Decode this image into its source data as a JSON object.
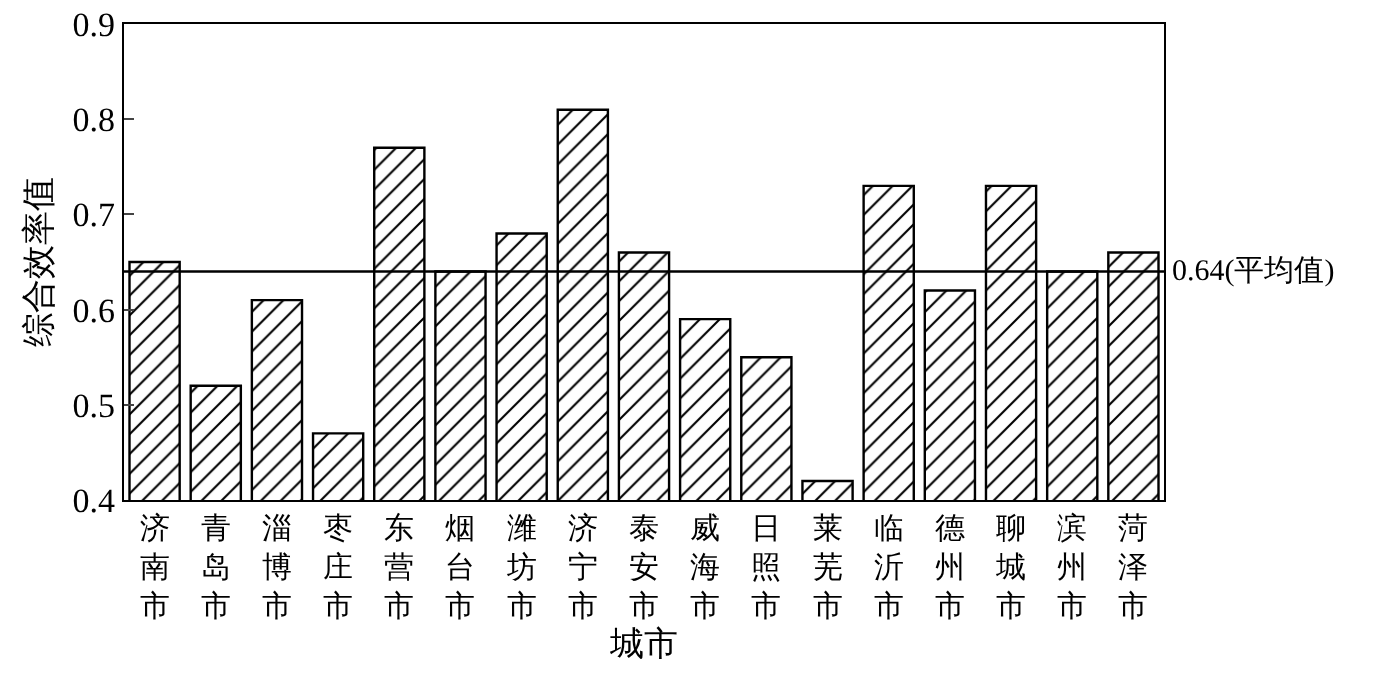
{
  "chart_data": {
    "type": "bar",
    "xlabel": "城市",
    "ylabel": "综合效率值",
    "categories": [
      "济南市",
      "青岛市",
      "淄博市",
      "枣庄市",
      "东营市",
      "烟台市",
      "潍坊市",
      "济宁市",
      "泰安市",
      "威海市",
      "日照市",
      "莱芜市",
      "临沂市",
      "德州市",
      "聊城市",
      "滨州市",
      "菏泽市"
    ],
    "values": [
      0.65,
      0.52,
      0.61,
      0.47,
      0.77,
      0.64,
      0.68,
      0.81,
      0.66,
      0.59,
      0.55,
      0.42,
      0.73,
      0.62,
      0.73,
      0.64,
      0.66
    ],
    "color": "#000000",
    "ylim": [
      0.4,
      0.9
    ],
    "yticks": [
      0.4,
      0.5,
      0.6,
      0.7,
      0.8,
      0.9
    ],
    "grid": false,
    "ref_lines": [
      {
        "axis": "y",
        "value": 0.64,
        "label": "0.64(平均值)",
        "color": "#000000"
      }
    ]
  }
}
